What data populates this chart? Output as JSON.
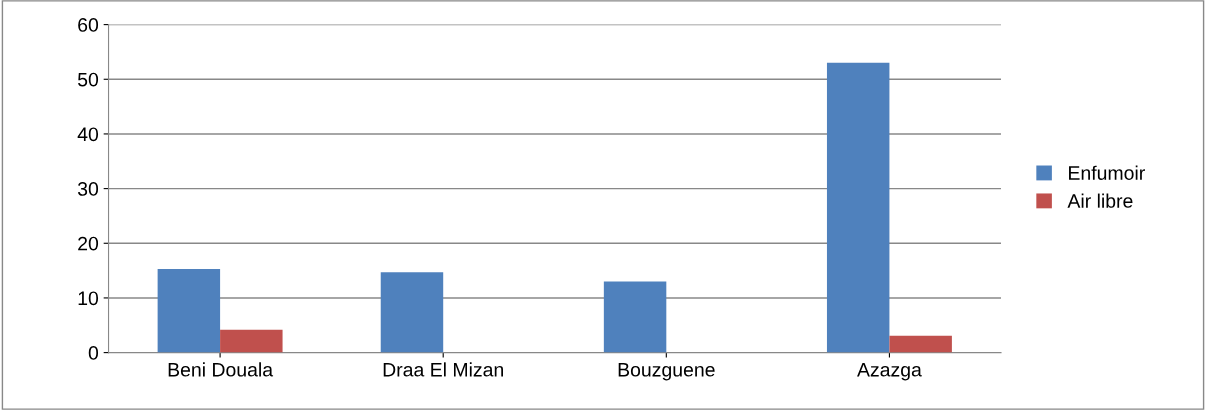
{
  "chart_data": {
    "type": "bar",
    "categories": [
      "Beni Douala",
      "Draa El Mizan",
      "Bouzguene",
      "Azazga"
    ],
    "series": [
      {
        "name": "Enfumoir",
        "color": "#4f81bd",
        "values": [
          15.3,
          14.7,
          13,
          53
        ]
      },
      {
        "name": "Air libre",
        "color": "#c0504d",
        "values": [
          4.2,
          0,
          0,
          3.1
        ]
      }
    ],
    "ylim": [
      0,
      60
    ],
    "yticks": [
      0,
      10,
      20,
      30,
      40,
      50,
      60
    ],
    "grid": "y",
    "legend": "right"
  }
}
